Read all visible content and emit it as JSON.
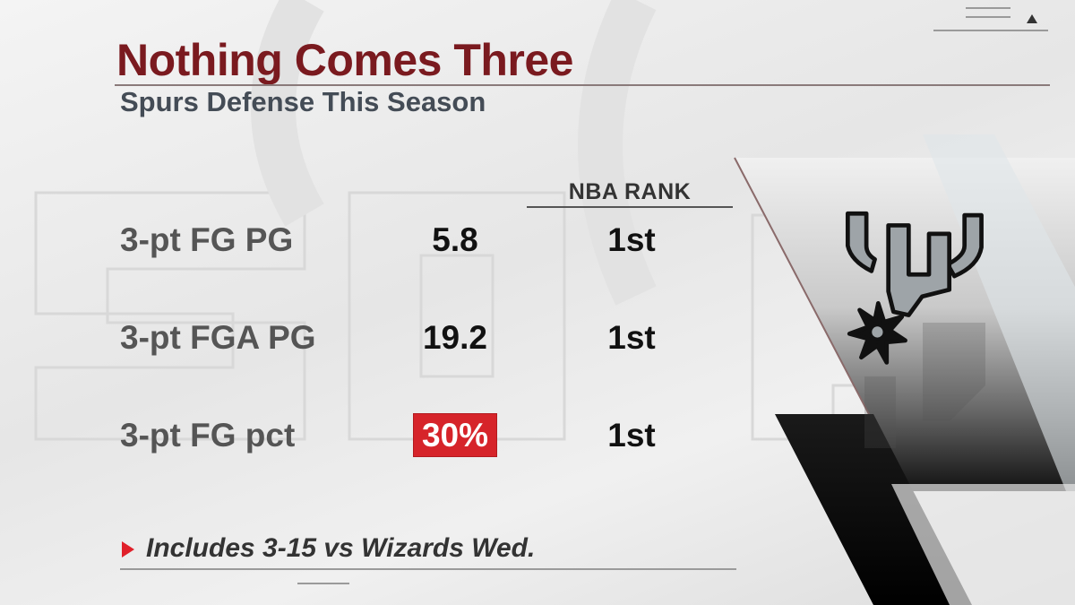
{
  "graphic": {
    "title": "Nothing Comes Three",
    "subtitle": "Spurs Defense This Season",
    "column_header": "NBA RANK",
    "rows": [
      {
        "label": "3-pt FG PG",
        "value": "5.8",
        "rank": "1st",
        "highlight": false
      },
      {
        "label": "3-pt FGA PG",
        "value": "19.2",
        "rank": "1st",
        "highlight": false
      },
      {
        "label": "3-pt FG pct",
        "value": "30%",
        "rank": "1st",
        "highlight": true
      }
    ],
    "footnote": "Includes 3-15 vs Wizards Wed."
  },
  "icons": {
    "menu": "hamburger-menu-icon",
    "scroll_up": "up-arrow-icon",
    "footnote_marker": "right-triangle-icon",
    "team_logo": "spurs-logo"
  },
  "colors": {
    "title": "#7a1a1f",
    "highlight_bg": "#d6242a",
    "highlight_text": "#ffffff",
    "footnote_marker": "#e0202a",
    "text_dark": "#111111",
    "label_gray": "#555555"
  }
}
